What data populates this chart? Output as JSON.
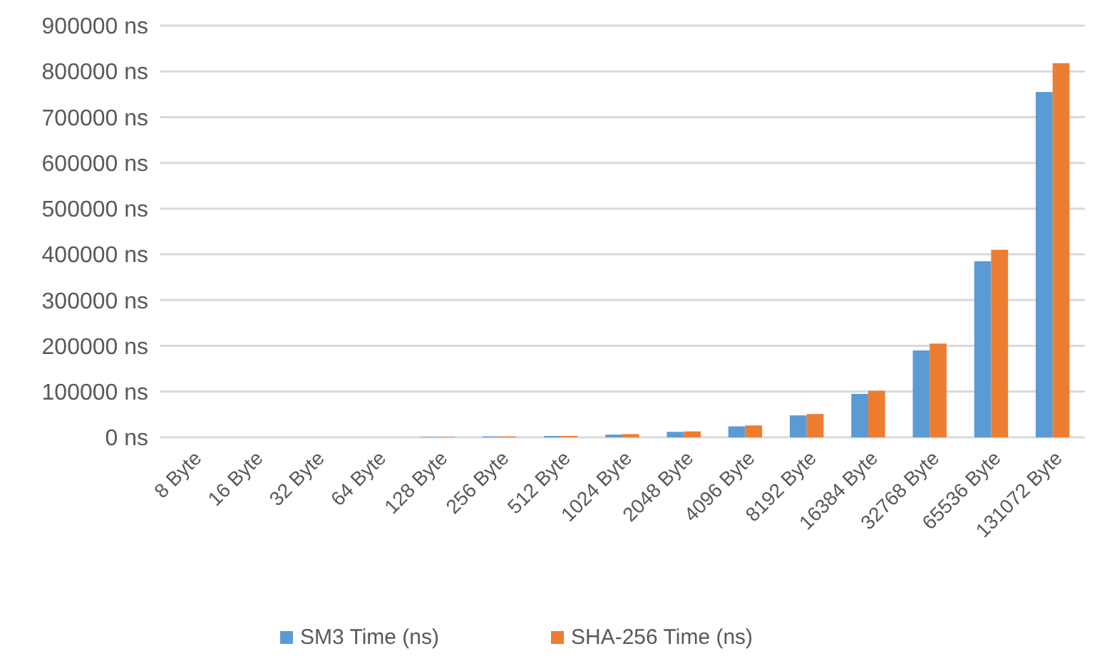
{
  "chart_data": {
    "type": "bar",
    "categories": [
      "8 Byte",
      "16 Byte",
      "32 Byte",
      "64 Byte",
      "128 Byte",
      "256 Byte",
      "512 Byte",
      "1024 Byte",
      "2048 Byte",
      "4096 Byte",
      "8192 Byte",
      "16384 Byte",
      "32768 Byte",
      "65536 Byte",
      "131072 Byte"
    ],
    "series": [
      {
        "name": "SM3 Time (ns)",
        "color": "#5b9bd5",
        "values": [
          0,
          0,
          0,
          0,
          1000,
          2000,
          3000,
          6000,
          12000,
          24000,
          48000,
          95000,
          190000,
          385000,
          755000
        ]
      },
      {
        "name": "SHA-256 Time (ns)",
        "color": "#ed7d31",
        "values": [
          0,
          0,
          0,
          0,
          1000,
          2000,
          3000,
          7000,
          13000,
          26000,
          51000,
          102000,
          205000,
          410000,
          818000
        ]
      }
    ],
    "ylim": [
      0,
      900000
    ],
    "yticks": [
      {
        "value": 0,
        "label": "0 ns"
      },
      {
        "value": 100000,
        "label": "100000 ns"
      },
      {
        "value": 200000,
        "label": "200000 ns"
      },
      {
        "value": 300000,
        "label": "300000 ns"
      },
      {
        "value": 400000,
        "label": "400000 ns"
      },
      {
        "value": 500000,
        "label": "500000 ns"
      },
      {
        "value": 600000,
        "label": "600000 ns"
      },
      {
        "value": 700000,
        "label": "700000 ns"
      },
      {
        "value": 800000,
        "label": "800000 ns"
      },
      {
        "value": 900000,
        "label": "900000 ns"
      }
    ],
    "grid": "y",
    "legend": "bottom"
  }
}
